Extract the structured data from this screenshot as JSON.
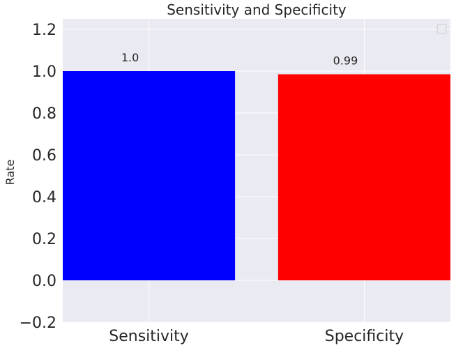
{
  "chart_data": {
    "type": "bar",
    "title": "Sensitivity and Specificity",
    "xlabel": "",
    "ylabel": "Rate",
    "categories": [
      "Sensitivity",
      "Specificity"
    ],
    "values": [
      1.0,
      0.985
    ],
    "data_labels": [
      "1.0",
      "0.99"
    ],
    "bar_colors": [
      "#0000ff",
      "#ff0000"
    ],
    "ylim": [
      -0.2,
      1.25
    ],
    "yticks": [
      -0.2,
      0.0,
      0.2,
      0.4,
      0.6,
      0.8,
      1.0,
      1.2
    ],
    "ytick_labels": [
      "−0.2",
      "0.0",
      "0.2",
      "0.4",
      "0.6",
      "0.8",
      "1.0",
      "1.2"
    ],
    "grid": true,
    "legend": "top-right",
    "colors": {
      "plot_background": "#eaeaf2",
      "grid": "#ffffff",
      "text": "#262626"
    }
  }
}
